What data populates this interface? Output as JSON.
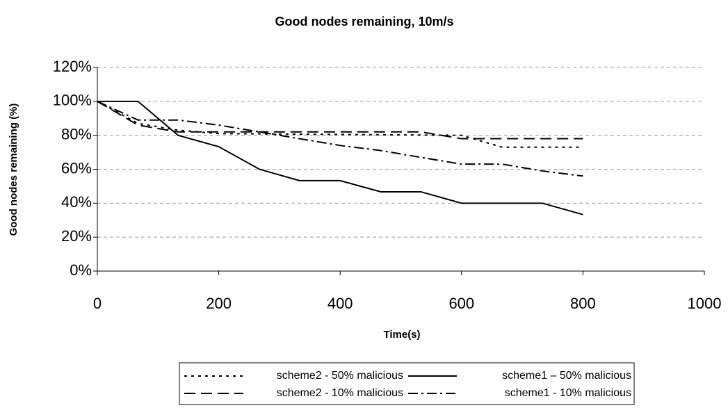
{
  "chart_data": {
    "type": "line",
    "title": "Good nodes remaining, 10m/s",
    "x_label": "Time(s)",
    "y_label": "Good nodes remaining (%)",
    "xlim": [
      0,
      1000
    ],
    "xticks": [
      0,
      200,
      400,
      600,
      800,
      1000
    ],
    "ylim": [
      0,
      120
    ],
    "yticks": [
      {
        "value": 0,
        "label": "0%"
      },
      {
        "value": 20,
        "label": "20%"
      },
      {
        "value": 40,
        "label": "40%"
      },
      {
        "value": 60,
        "label": "60%"
      },
      {
        "value": 80,
        "label": "80%"
      },
      {
        "value": 100,
        "label": "100%"
      },
      {
        "value": 120,
        "label": "120%"
      }
    ],
    "grid": true,
    "legend": "bottom",
    "series": [
      {
        "name": "scheme2 - 50% malicious",
        "color": "#000000",
        "dash": "4,6",
        "x": [
          0,
          67,
          133,
          200,
          600,
          667,
          800
        ],
        "values": [
          100,
          87,
          83,
          81,
          80,
          73,
          73
        ]
      },
      {
        "name": "scheme1 – 50% malicious",
        "color": "#000000",
        "dash": "",
        "x": [
          0,
          67,
          133,
          200,
          267,
          333,
          400,
          467,
          533,
          600,
          733,
          800
        ],
        "values": [
          100,
          100,
          80,
          73.3,
          60,
          53.3,
          53.3,
          46.7,
          46.7,
          40,
          40,
          33.3
        ]
      },
      {
        "name": "scheme2 - 10% malicious",
        "color": "#000000",
        "dash": "16,8",
        "x": [
          0,
          67,
          133,
          533,
          600,
          800
        ],
        "values": [
          100,
          86,
          82,
          82,
          78,
          78
        ]
      },
      {
        "name": "scheme1 - 10% malicious",
        "color": "#000000",
        "dash": "14,5,3,5",
        "x": [
          0,
          67,
          133,
          200,
          267,
          333,
          400,
          467,
          533,
          600,
          667,
          733,
          800
        ],
        "values": [
          100,
          89,
          89,
          86,
          82,
          78,
          74,
          71,
          67,
          63,
          63,
          59,
          56
        ]
      }
    ]
  }
}
